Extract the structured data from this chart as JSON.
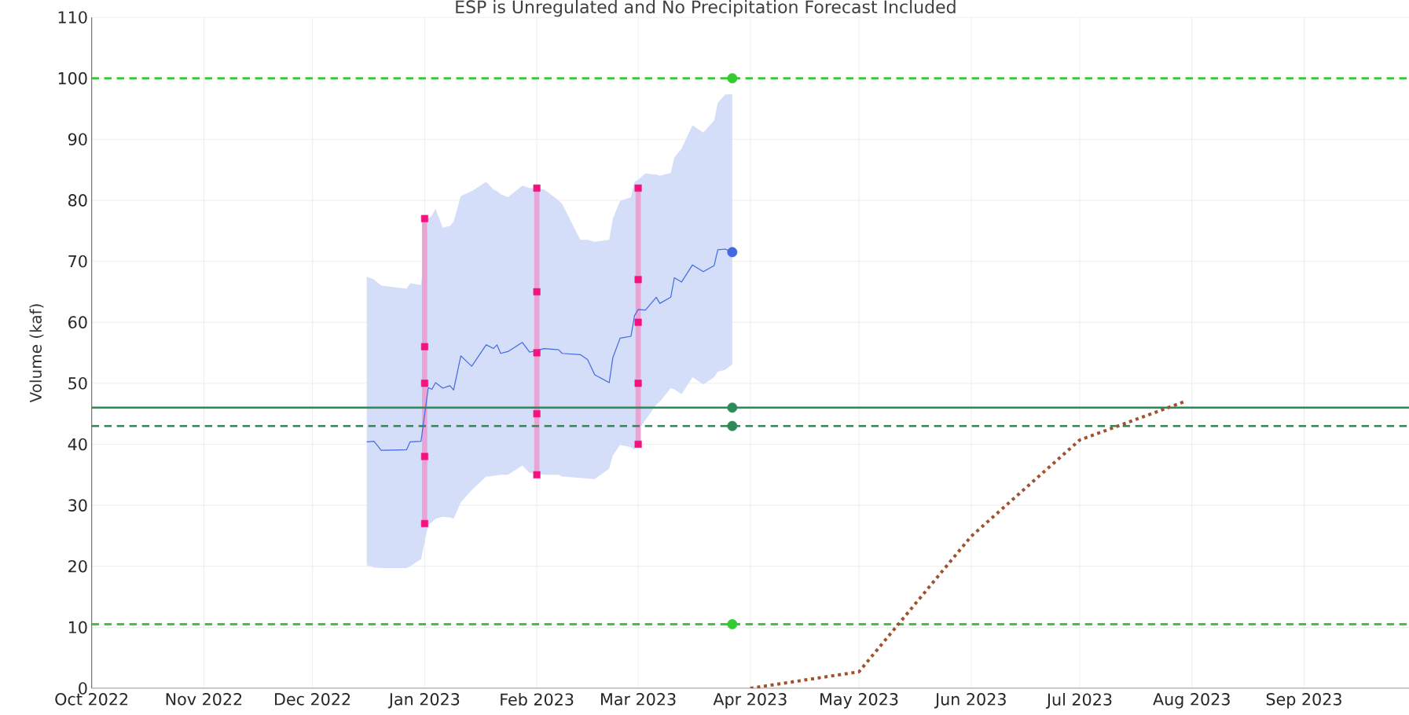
{
  "chart_data": {
    "type": "line",
    "title": "ESP is Unregulated and No Precipitation Forecast Included",
    "ylabel": "Volume (kaf)",
    "xlim": [
      "2022-10-01",
      "2023-09-30"
    ],
    "ylim": [
      0,
      110
    ],
    "xticks": [
      {
        "value": "2022-10-01",
        "label": "Oct 2022"
      },
      {
        "value": "2022-11-01",
        "label": "Nov 2022"
      },
      {
        "value": "2022-12-01",
        "label": "Dec 2022"
      },
      {
        "value": "2023-01-01",
        "label": "Jan 2023"
      },
      {
        "value": "2023-02-01",
        "label": "Feb 2023"
      },
      {
        "value": "2023-03-01",
        "label": "Mar 2023"
      },
      {
        "value": "2023-04-01",
        "label": "Apr 2023"
      },
      {
        "value": "2023-05-01",
        "label": "May 2023"
      },
      {
        "value": "2023-06-01",
        "label": "Jun 2023"
      },
      {
        "value": "2023-07-01",
        "label": "Jul 2023"
      },
      {
        "value": "2023-08-01",
        "label": "Aug 2023"
      },
      {
        "value": "2023-09-01",
        "label": "Sep 2023"
      }
    ],
    "yticks": [
      0,
      10,
      20,
      30,
      40,
      50,
      60,
      70,
      80,
      90,
      100,
      110
    ],
    "grid": true,
    "ref_lines": [
      {
        "axis": "y",
        "value": 100,
        "color": "#33cc33",
        "line_style": "dashed"
      },
      {
        "axis": "y",
        "value": 10.5,
        "color": "#33cc33",
        "line_style": "dashed"
      },
      {
        "axis": "y",
        "value": 46,
        "color": "#2e8b57",
        "line_style": "solid"
      },
      {
        "axis": "y",
        "value": 43,
        "color": "#2e8b57",
        "line_style": "dashed"
      }
    ],
    "series": [
      {
        "color": "#4169e1",
        "line_style": "solid",
        "marker": "none",
        "x": [
          "2022-12-16",
          "2022-12-18",
          "2022-12-20",
          "2022-12-27",
          "2022-12-28",
          "2022-12-31",
          "2023-01-02",
          "2023-01-03",
          "2023-01-04",
          "2023-01-06",
          "2023-01-08",
          "2023-01-09",
          "2023-01-11",
          "2023-01-14",
          "2023-01-18",
          "2023-01-20",
          "2023-01-21",
          "2023-01-22",
          "2023-01-24",
          "2023-01-28",
          "2023-01-30",
          "2023-02-03",
          "2023-02-07",
          "2023-02-08",
          "2023-02-13",
          "2023-02-15",
          "2023-02-17",
          "2023-02-21",
          "2023-02-22",
          "2023-02-24",
          "2023-02-27",
          "2023-02-28",
          "2023-03-01",
          "2023-03-03",
          "2023-03-06",
          "2023-03-07",
          "2023-03-10",
          "2023-03-11",
          "2023-03-13",
          "2023-03-16",
          "2023-03-19",
          "2023-03-22",
          "2023-03-23",
          "2023-03-25",
          "2023-03-27"
        ],
        "values": [
          40.4,
          40.5,
          39.0,
          39.1,
          40.4,
          40.5,
          49.3,
          49.0,
          50.1,
          49.2,
          49.6,
          48.9,
          54.5,
          52.8,
          56.3,
          55.7,
          56.3,
          54.9,
          55.2,
          56.7,
          55.1,
          55.7,
          55.5,
          54.9,
          54.7,
          53.9,
          51.4,
          50.1,
          54.2,
          57.4,
          57.7,
          61.1,
          62.1,
          62.0,
          64.1,
          63.1,
          64.1,
          67.3,
          66.6,
          69.4,
          68.3,
          69.3,
          71.9,
          72.0,
          71.5
        ],
        "upper": [
          67.5,
          67.0,
          66.0,
          65.5,
          66.4,
          66.1,
          77.0,
          77.5,
          78.6,
          75.5,
          75.8,
          76.5,
          80.7,
          81.5,
          83.0,
          81.8,
          81.5,
          81.0,
          80.5,
          82.4,
          82.0,
          81.8,
          80.0,
          79.4,
          73.5,
          73.5,
          73.2,
          73.5,
          77.0,
          79.9,
          80.5,
          83.0,
          83.4,
          84.4,
          84.2,
          84.0,
          84.5,
          87.0,
          88.5,
          92.3,
          91.1,
          93.1,
          96.0,
          97.3,
          97.4
        ],
        "lower": [
          20.2,
          19.8,
          19.7,
          19.7,
          20.0,
          21.2,
          26.8,
          27.2,
          27.8,
          28.1,
          28.0,
          27.8,
          30.5,
          32.5,
          34.7,
          34.8,
          34.9,
          35.0,
          35.0,
          36.5,
          35.3,
          35.0,
          35.0,
          34.7,
          34.5,
          34.4,
          34.3,
          36.0,
          38.2,
          39.9,
          39.5,
          39.1,
          42.3,
          44.0,
          46.5,
          47.0,
          49.2,
          49.0,
          48.2,
          51.0,
          49.8,
          51.0,
          51.9,
          52.2,
          53.1
        ]
      },
      {
        "type": "bar",
        "color": "#eaa3d5",
        "x": [
          "2023-01-01",
          "2023-02-01",
          "2023-03-01"
        ],
        "base": [
          27,
          35,
          40
        ],
        "values": [
          50,
          47,
          42
        ]
      },
      {
        "type": "scatter",
        "color": "#f2137f",
        "marker": "square",
        "x": [
          "2023-01-01",
          "2023-01-01",
          "2023-01-01",
          "2023-01-01",
          "2023-01-01",
          "2023-02-01",
          "2023-02-01",
          "2023-02-01",
          "2023-02-01",
          "2023-02-01",
          "2023-03-01",
          "2023-03-01",
          "2023-03-01",
          "2023-03-01",
          "2023-03-01"
        ],
        "values": [
          77,
          56,
          50,
          38,
          27,
          82,
          65,
          55,
          45,
          35,
          82,
          67,
          60,
          50,
          40
        ]
      },
      {
        "type": "scatter",
        "color": "#33cc33",
        "marker": "circle",
        "x": [
          "2023-03-27",
          "2023-03-27"
        ],
        "values": [
          100,
          10.5
        ]
      },
      {
        "type": "scatter",
        "color": "#2e8b57",
        "marker": "circle",
        "x": [
          "2023-03-27",
          "2023-03-27"
        ],
        "values": [
          46,
          43
        ]
      },
      {
        "type": "scatter",
        "color": "#4169e1",
        "marker": "circle",
        "x": [
          "2023-03-27"
        ],
        "values": [
          71.5
        ]
      },
      {
        "color": "#a0522d",
        "line_style": "dotted",
        "marker": "none",
        "x": [
          "2023-04-01",
          "2023-05-01",
          "2023-06-01",
          "2023-07-01",
          "2023-07-30"
        ],
        "values": [
          0,
          2.7,
          24.9,
          40.7,
          47.0
        ]
      }
    ]
  }
}
